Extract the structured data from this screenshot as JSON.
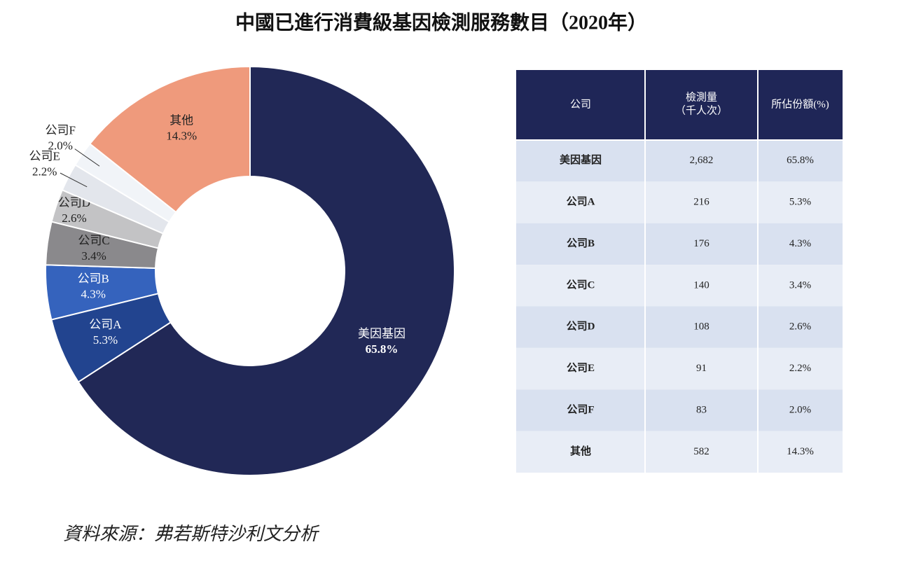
{
  "chart_data": {
    "type": "donut",
    "title": "中國已進行消費級基因檢測服務數目（2020年）",
    "categories": [
      "美因基因",
      "公司A",
      "公司B",
      "公司C",
      "公司D",
      "公司E",
      "公司F",
      "其他"
    ],
    "values": [
      65.8,
      5.3,
      4.3,
      3.4,
      2.6,
      2.2,
      2.0,
      14.3
    ],
    "value_labels": [
      "65.8%",
      "5.3%",
      "4.3%",
      "3.4%",
      "2.6%",
      "2.2%",
      "2.0%",
      "14.3%"
    ],
    "colors": [
      "#212856",
      "#22448f",
      "#3563bd",
      "#8a898c",
      "#c3c3c5",
      "#e3e6ec",
      "#f1f4f8",
      "#ef9a7c"
    ]
  },
  "table": {
    "header": [
      "公司",
      [
        "檢測量",
        "（千人次）"
      ],
      "所佔份額(%)"
    ],
    "rows": [
      [
        "美因基因",
        "2,682",
        "65.8%"
      ],
      [
        "公司A",
        "216",
        "5.3%"
      ],
      [
        "公司B",
        "176",
        "4.3%"
      ],
      [
        "公司C",
        "140",
        "3.4%"
      ],
      [
        "公司D",
        "108",
        "2.6%"
      ],
      [
        "公司E",
        "91",
        "2.2%"
      ],
      [
        "公司F",
        "83",
        "2.0%"
      ],
      [
        "其他",
        "582",
        "14.3%"
      ]
    ]
  },
  "source": "資料來源：弗若斯特沙利文分析"
}
